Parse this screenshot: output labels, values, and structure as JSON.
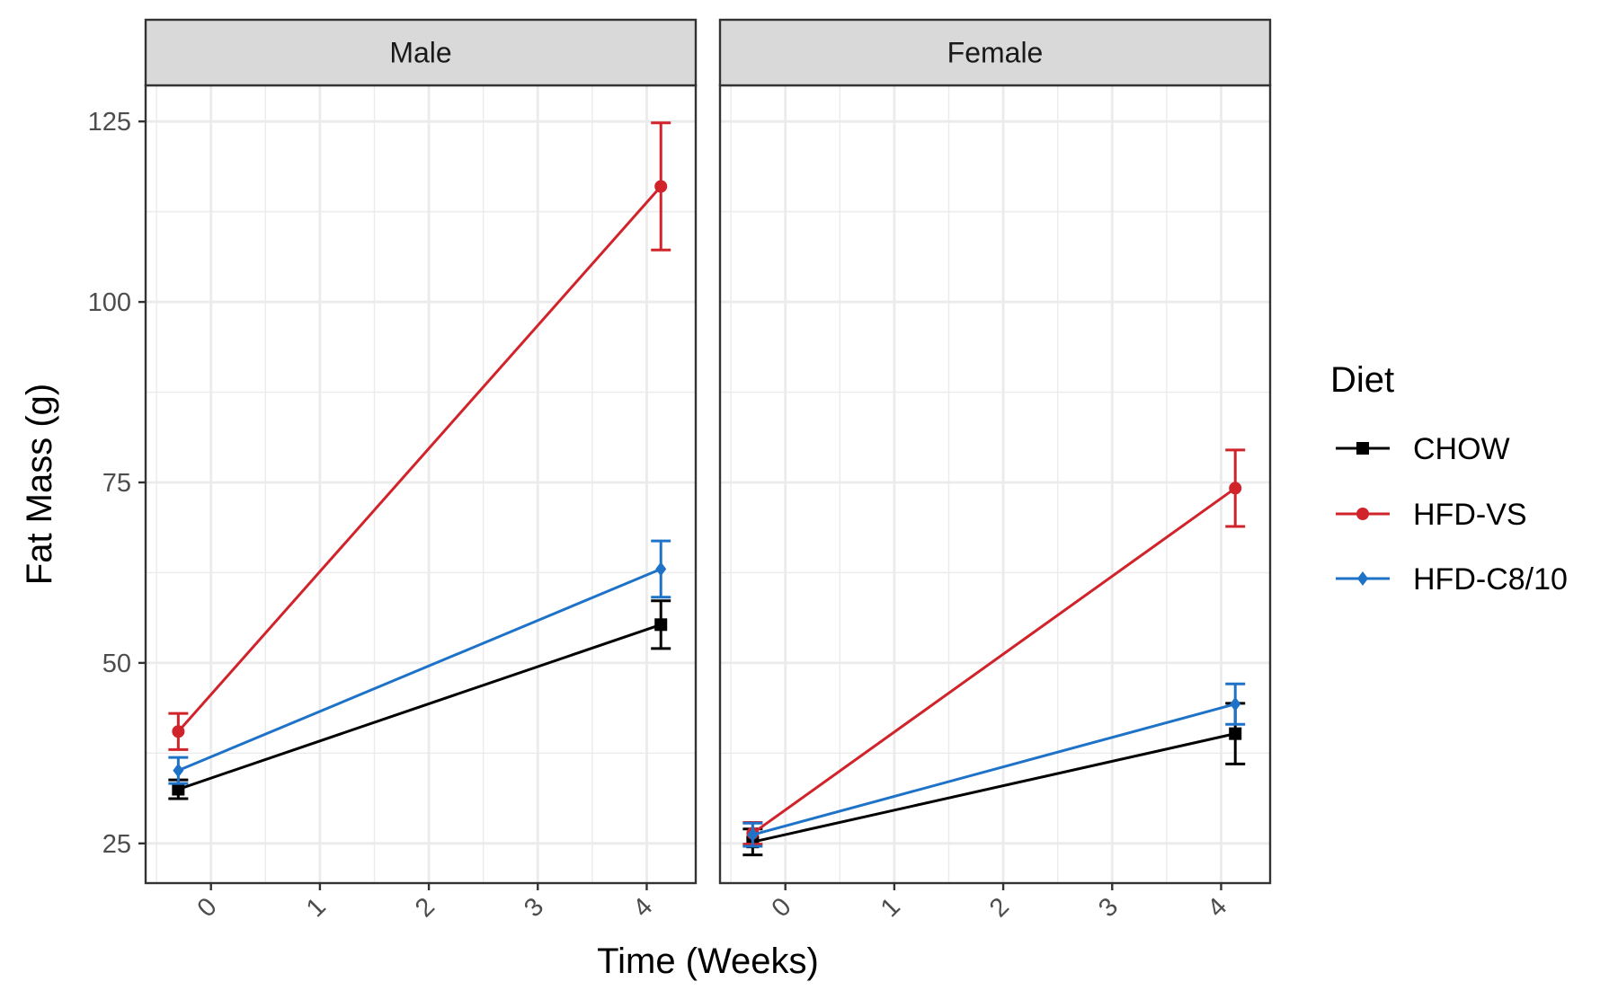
{
  "chart_data": {
    "type": "line",
    "xlabel": "Time (Weeks)",
    "ylabel": "Fat Mass (g)",
    "xlim": [
      -0.6,
      4.45
    ],
    "ylim": [
      19.5,
      130
    ],
    "x_ticks": [
      "0",
      "1",
      "2",
      "3",
      "4"
    ],
    "y_ticks": [
      "25",
      "50",
      "75",
      "100",
      "125"
    ],
    "grid": true,
    "legend": {
      "title": "Diet",
      "position": "right",
      "entries": [
        "CHOW",
        "HFD-VS",
        "HFD-C8/10"
      ]
    },
    "colors": {
      "CHOW": "#000000",
      "HFD-VS": "#d0232a",
      "HFD-C8/10": "#1e73c8",
      "strip_background": "#d9d9d9",
      "grid": "#ebebeb",
      "panel_border": "#333333"
    },
    "markers": {
      "CHOW": "square",
      "HFD-VS": "circle",
      "HFD-C8/10": "diamond"
    },
    "panels": [
      {
        "label": "Male",
        "series": [
          {
            "name": "CHOW",
            "x": [
              -0.3,
              4.13
            ],
            "y": [
              32.5,
              55.3
            ],
            "error": [
              1.3,
              3.3
            ]
          },
          {
            "name": "HFD-VS",
            "x": [
              -0.3,
              4.13
            ],
            "y": [
              40.5,
              116
            ],
            "error": [
              2.5,
              8.8
            ]
          },
          {
            "name": "HFD-C8/10",
            "x": [
              -0.3,
              4.13
            ],
            "y": [
              35.1,
              63
            ],
            "error": [
              1.8,
              3.9
            ]
          }
        ]
      },
      {
        "label": "Female",
        "series": [
          {
            "name": "CHOW",
            "x": [
              -0.3,
              4.13
            ],
            "y": [
              25.2,
              40.2
            ],
            "error": [
              1.8,
              4.2
            ]
          },
          {
            "name": "HFD-VS",
            "x": [
              -0.3,
              4.13
            ],
            "y": [
              26.4,
              74.2
            ],
            "error": [
              1.5,
              5.3
            ]
          },
          {
            "name": "HFD-C8/10",
            "x": [
              -0.3,
              4.13
            ],
            "y": [
              26.2,
              44.3
            ],
            "error": [
              1.6,
              2.8
            ]
          }
        ]
      }
    ]
  }
}
